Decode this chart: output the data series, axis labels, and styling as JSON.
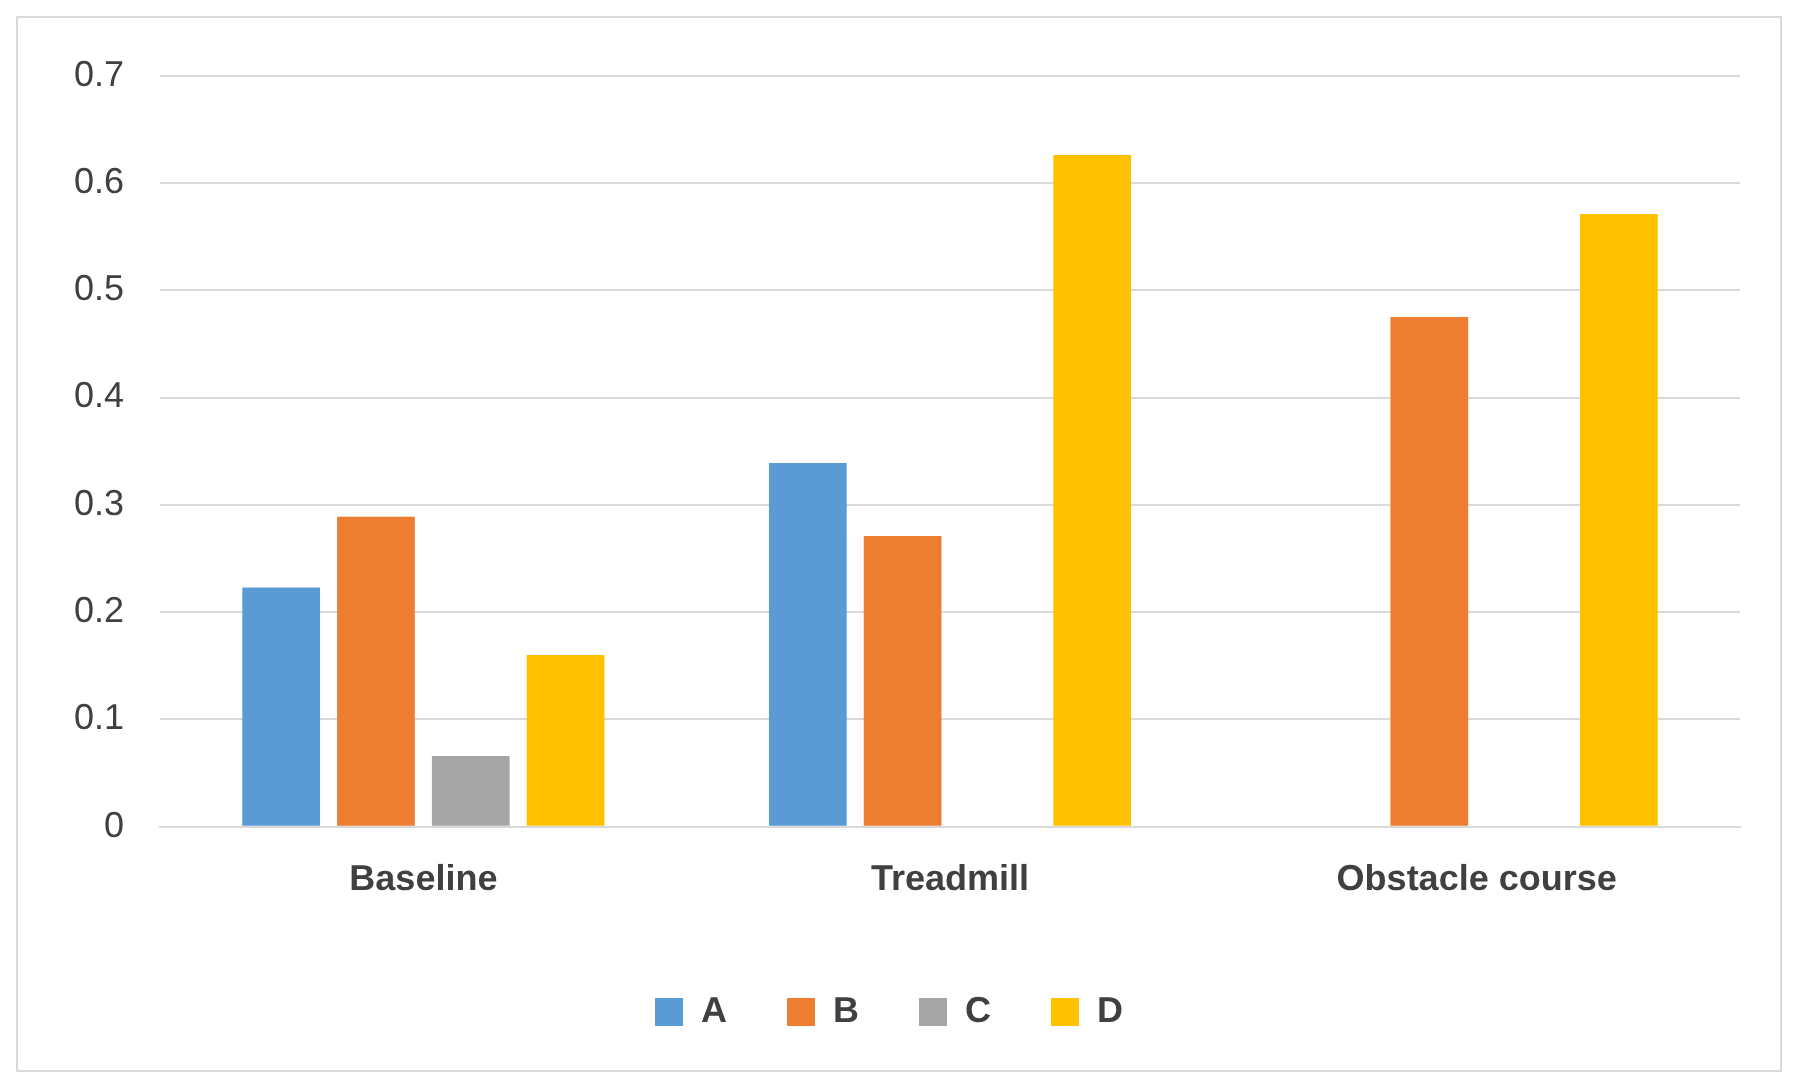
{
  "chart_data": {
    "type": "bar",
    "categories": [
      "Baseline",
      "Treadmill",
      "Obstacle course"
    ],
    "series": [
      {
        "name": "A",
        "color": "#5b9bd5",
        "values": [
          0.223,
          0.339,
          null
        ]
      },
      {
        "name": "B",
        "color": "#ed7d31",
        "values": [
          0.289,
          0.271,
          0.475
        ]
      },
      {
        "name": "C",
        "color": "#a5a5a5",
        "values": [
          0.066,
          null,
          null
        ]
      },
      {
        "name": "D",
        "color": "#ffc000",
        "values": [
          0.16,
          0.626,
          0.571
        ]
      }
    ],
    "ylim": [
      0,
      0.7
    ],
    "yticks": [
      0,
      0.1,
      0.2,
      0.3,
      0.4,
      0.5,
      0.6,
      0.7
    ],
    "grid": "y",
    "legend": "bottom"
  }
}
